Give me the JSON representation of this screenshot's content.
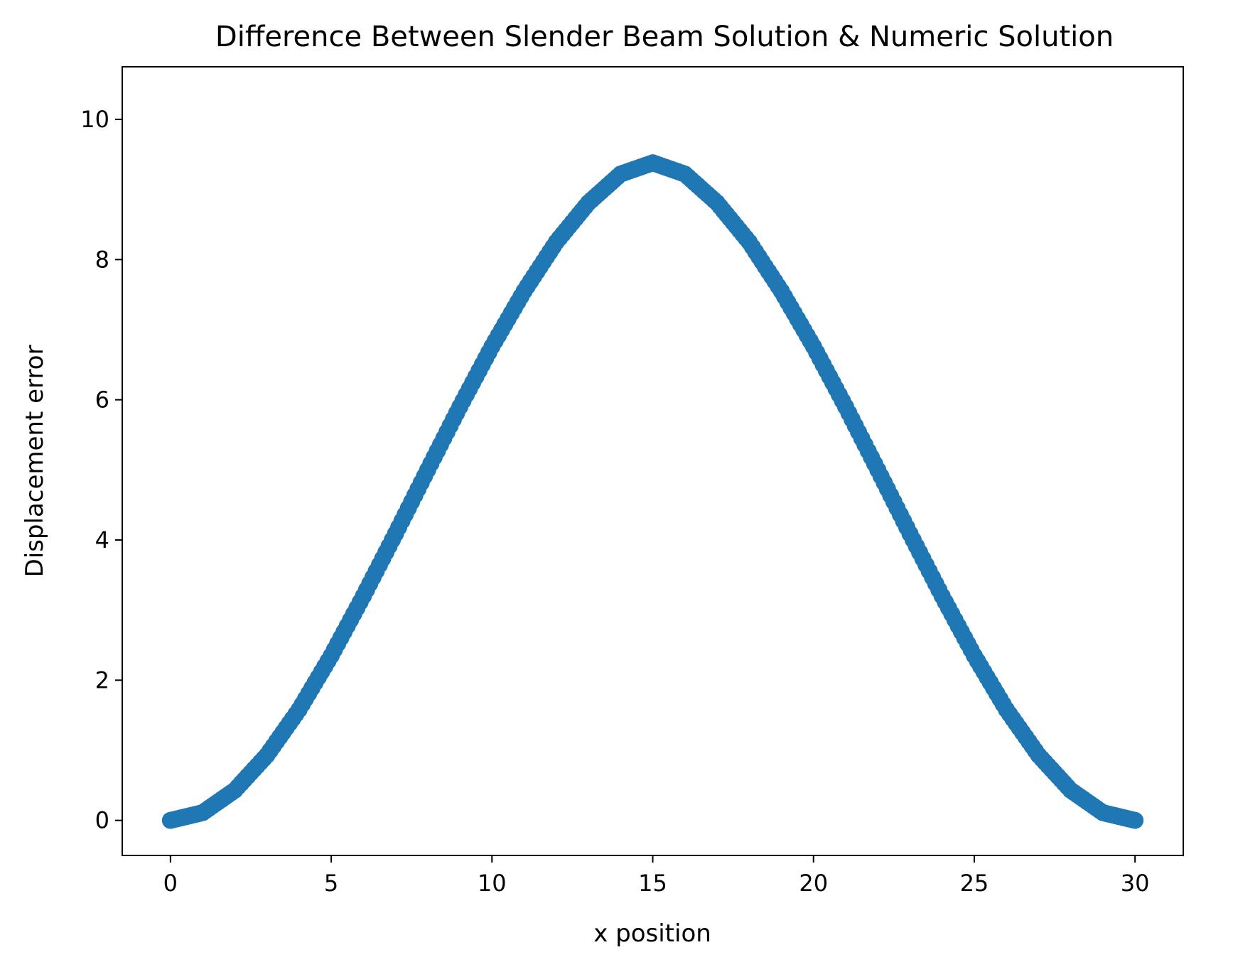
{
  "chart_data": {
    "type": "scatter",
    "title": "Difference Between Slender Beam Solution & Numeric Solution",
    "xlabel": "x position",
    "ylabel": "Displacement error",
    "xlim": [
      -1.5,
      31.5
    ],
    "ylim": [
      -0.5,
      10.75
    ],
    "xticks": [
      0,
      5,
      10,
      15,
      20,
      25,
      30
    ],
    "yticks": [
      0,
      2,
      4,
      6,
      8,
      10
    ],
    "grid": false,
    "legend": "none",
    "marker_color": "#1f77b4",
    "series": [
      {
        "x": [
          0,
          1,
          2,
          3,
          4,
          5,
          6,
          7,
          8,
          9,
          10,
          11,
          12,
          13,
          14,
          15,
          16,
          17,
          18,
          19,
          20,
          21,
          22,
          23,
          24,
          25,
          26,
          27,
          28,
          29,
          30
        ],
        "y": [
          0.0,
          0.11,
          0.43,
          0.93,
          1.58,
          2.35,
          3.2,
          4.09,
          5.0,
          5.9,
          6.76,
          7.55,
          8.25,
          8.81,
          9.22,
          9.38,
          9.22,
          8.81,
          8.25,
          7.55,
          6.76,
          5.9,
          5.0,
          4.09,
          3.2,
          2.35,
          1.58,
          0.93,
          0.43,
          0.11,
          0.0
        ]
      }
    ]
  }
}
